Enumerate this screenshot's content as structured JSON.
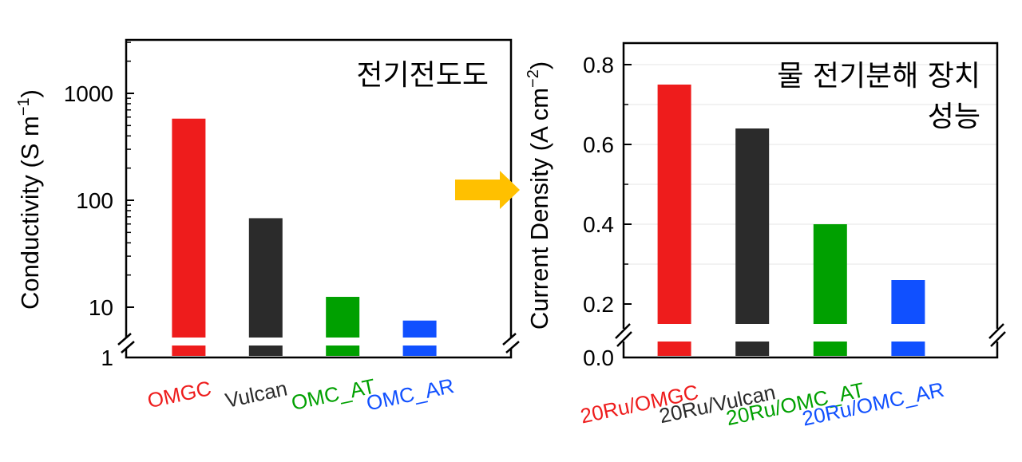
{
  "chart_data": [
    {
      "type": "bar",
      "title": "전기전도도",
      "ylabel_main": "Conductivity (S m",
      "ylabel_sup": "−1",
      "ylabel_end": ")",
      "yscale": "log",
      "ylim": [
        1,
        3000
      ],
      "ytick_labels": [
        "1",
        "10",
        "100",
        "1000"
      ],
      "axis_break": true,
      "categories": [
        "OMGC",
        "Vulcan",
        "OMC_AT",
        "OMC_AR"
      ],
      "values": [
        580,
        68,
        12.5,
        7.5
      ],
      "colors": [
        "#ee1c1c",
        "#2b2b2b",
        "#00a000",
        "#1050ff"
      ],
      "grid": false
    },
    {
      "type": "bar",
      "title_line1": "물 전기분해 장치",
      "title_line2": "성능",
      "ylabel_main": "Current Density (A cm",
      "ylabel_sup": "−2",
      "ylabel_end": ")",
      "ylim": [
        0,
        0.85
      ],
      "ytick_labels": [
        "0.0",
        "0.2",
        "0.4",
        "0.6",
        "0.8"
      ],
      "axis_break": true,
      "categories": [
        "20Ru/OMGC",
        "20Ru/Vulcan",
        "20Ru/OMC_AT",
        "20Ru/OMC_AR"
      ],
      "values": [
        0.75,
        0.64,
        0.4,
        0.26
      ],
      "colors": [
        "#ee1c1c",
        "#2b2b2b",
        "#00a000",
        "#1050ff"
      ],
      "grid": true
    }
  ],
  "arrow_color": "#ffc000"
}
